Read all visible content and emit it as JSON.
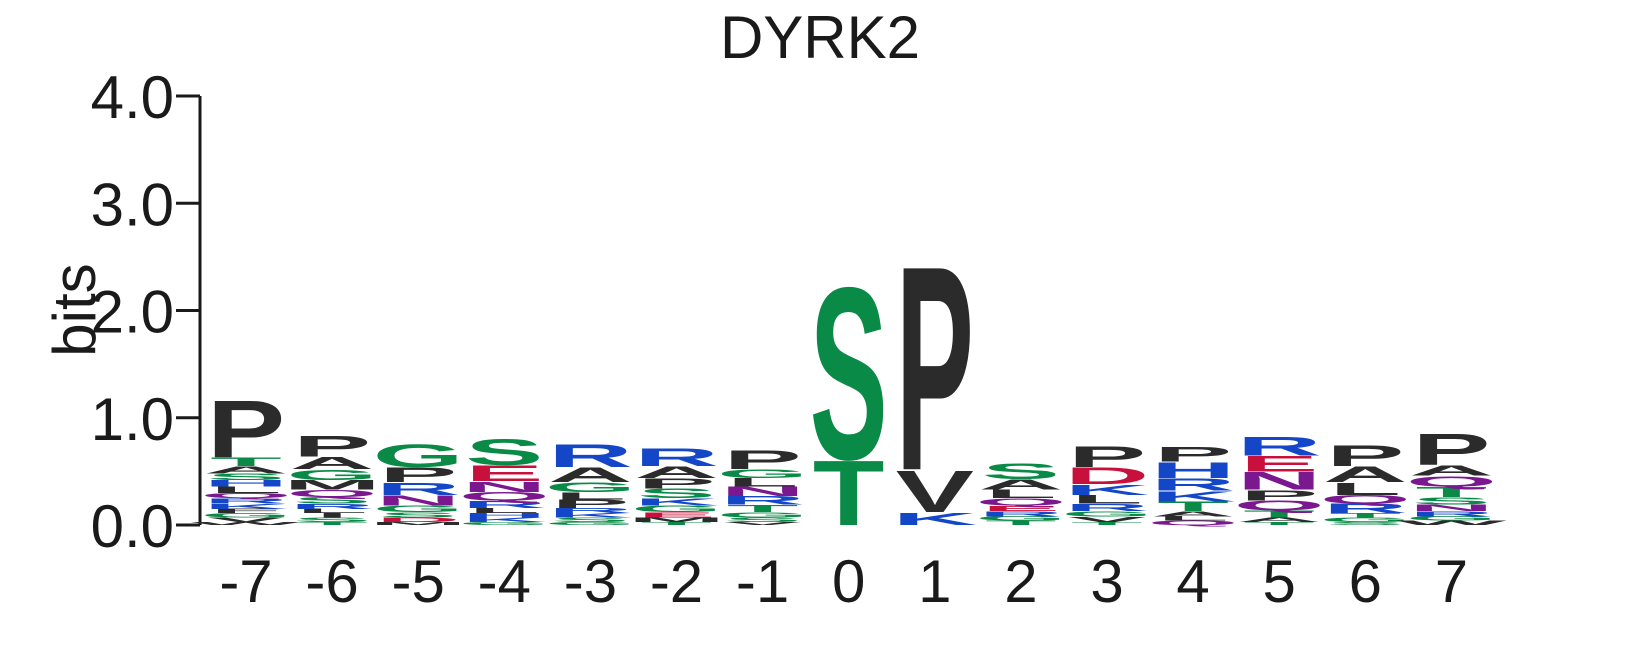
{
  "chart_data": {
    "type": "sequence-logo",
    "title": "DYRK2",
    "ylabel": "bits",
    "ylim": [
      0,
      4.0
    ],
    "yticks": [
      "0.0",
      "1.0",
      "2.0",
      "3.0",
      "4.0"
    ],
    "ytick_values": [
      0,
      1,
      2,
      3,
      4
    ],
    "positions": [
      "-7",
      "-6",
      "-5",
      "-4",
      "-3",
      "-2",
      "-1",
      "0",
      "1",
      "2",
      "3",
      "4",
      "5",
      "6",
      "7"
    ],
    "colors": {
      "hydrophobic": "#2b2b2b",
      "polar": "#0a8a47",
      "basic": "#1447c8",
      "acidic": "#c8103c",
      "amide": "#7b1890"
    },
    "residue_colors": {
      "A": "#2b2b2b",
      "V": "#2b2b2b",
      "L": "#2b2b2b",
      "I": "#2b2b2b",
      "P": "#2b2b2b",
      "F": "#2b2b2b",
      "W": "#2b2b2b",
      "M": "#2b2b2b",
      "G": "#0a8a47",
      "S": "#0a8a47",
      "T": "#0a8a47",
      "Y": "#0a8a47",
      "C": "#0a8a47",
      "K": "#1447c8",
      "R": "#1447c8",
      "H": "#1447c8",
      "D": "#c8103c",
      "E": "#c8103c",
      "N": "#7b1890",
      "Q": "#7b1890"
    },
    "stacks": [
      {
        "position": "-7",
        "letters": [
          [
            "W",
            0.03
          ],
          [
            "V",
            0.04
          ],
          [
            "G",
            0.04
          ],
          [
            "F",
            0.04
          ],
          [
            "K",
            0.05
          ],
          [
            "R",
            0.05
          ],
          [
            "Q",
            0.05
          ],
          [
            "L",
            0.06
          ],
          [
            "H",
            0.06
          ],
          [
            "S",
            0.06
          ],
          [
            "A",
            0.07
          ],
          [
            "T",
            0.08
          ],
          [
            "P",
            0.55
          ]
        ]
      },
      {
        "position": "-6",
        "letters": [
          [
            "T",
            0.03
          ],
          [
            "S",
            0.04
          ],
          [
            "I",
            0.04
          ],
          [
            "L",
            0.04
          ],
          [
            "R",
            0.05
          ],
          [
            "S",
            0.06
          ],
          [
            "Q",
            0.07
          ],
          [
            "M",
            0.09
          ],
          [
            "G",
            0.1
          ],
          [
            "A",
            0.12
          ],
          [
            "P",
            0.2
          ]
        ]
      },
      {
        "position": "-5",
        "letters": [
          [
            "M",
            0.03
          ],
          [
            "D",
            0.04
          ],
          [
            "S",
            0.05
          ],
          [
            "G",
            0.06
          ],
          [
            "N",
            0.1
          ],
          [
            "R",
            0.12
          ],
          [
            "P",
            0.14
          ],
          [
            "G",
            0.22
          ]
        ]
      },
      {
        "position": "-4",
        "letters": [
          [
            "G",
            0.03
          ],
          [
            "K",
            0.04
          ],
          [
            "H",
            0.04
          ],
          [
            "L",
            0.05
          ],
          [
            "R",
            0.07
          ],
          [
            "Q",
            0.08
          ],
          [
            "N",
            0.1
          ],
          [
            "E",
            0.15
          ],
          [
            "S",
            0.25
          ]
        ]
      },
      {
        "position": "-3",
        "letters": [
          [
            "G",
            0.03
          ],
          [
            "S",
            0.04
          ],
          [
            "K",
            0.04
          ],
          [
            "R",
            0.05
          ],
          [
            "P",
            0.08
          ],
          [
            "L",
            0.07
          ],
          [
            "G",
            0.09
          ],
          [
            "A",
            0.14
          ],
          [
            "R",
            0.22
          ]
        ]
      },
      {
        "position": "-2",
        "letters": [
          [
            "T",
            0.03
          ],
          [
            "M",
            0.04
          ],
          [
            "E",
            0.05
          ],
          [
            "G",
            0.06
          ],
          [
            "K",
            0.07
          ],
          [
            "S",
            0.09
          ],
          [
            "P",
            0.1
          ],
          [
            "A",
            0.11
          ],
          [
            "R",
            0.17
          ]
        ]
      },
      {
        "position": "-1",
        "letters": [
          [
            "V",
            0.03
          ],
          [
            "S",
            0.04
          ],
          [
            "G",
            0.05
          ],
          [
            "T",
            0.07
          ],
          [
            "R",
            0.08
          ],
          [
            "N",
            0.09
          ],
          [
            "L",
            0.08
          ],
          [
            "G",
            0.08
          ],
          [
            "P",
            0.18
          ]
        ]
      },
      {
        "position": "0",
        "letters": [
          [
            "T",
            0.62
          ],
          [
            "S",
            1.65
          ]
        ]
      },
      {
        "position": "1",
        "letters": [
          [
            "K",
            0.12
          ],
          [
            "V",
            0.4
          ],
          [
            "P",
            1.96
          ]
        ]
      },
      {
        "position": "2",
        "letters": [
          [
            "T",
            0.04
          ],
          [
            "G",
            0.04
          ],
          [
            "R",
            0.05
          ],
          [
            "E",
            0.05
          ],
          [
            "Q",
            0.07
          ],
          [
            "L",
            0.08
          ],
          [
            "A",
            0.1
          ],
          [
            "S",
            0.15
          ]
        ]
      },
      {
        "position": "3",
        "letters": [
          [
            "T",
            0.03
          ],
          [
            "V",
            0.05
          ],
          [
            "G",
            0.05
          ],
          [
            "R",
            0.07
          ],
          [
            "L",
            0.08
          ],
          [
            "K",
            0.1
          ],
          [
            "D",
            0.16
          ],
          [
            "P",
            0.2
          ]
        ]
      },
      {
        "position": "4",
        "letters": [
          [
            "Q",
            0.04
          ],
          [
            "L",
            0.04
          ],
          [
            "A",
            0.05
          ],
          [
            "T",
            0.09
          ],
          [
            "K",
            0.1
          ],
          [
            "R",
            0.12
          ],
          [
            "H",
            0.15
          ],
          [
            "P",
            0.14
          ]
        ]
      },
      {
        "position": "5",
        "letters": [
          [
            "T",
            0.03
          ],
          [
            "A",
            0.04
          ],
          [
            "T",
            0.07
          ],
          [
            "Q",
            0.09
          ],
          [
            "P",
            0.1
          ],
          [
            "N",
            0.17
          ],
          [
            "E",
            0.15
          ],
          [
            "R",
            0.18
          ]
        ]
      },
      {
        "position": "6",
        "letters": [
          [
            "S",
            0.03
          ],
          [
            "G",
            0.04
          ],
          [
            "T",
            0.04
          ],
          [
            "R",
            0.09
          ],
          [
            "Q",
            0.08
          ],
          [
            "L",
            0.12
          ],
          [
            "A",
            0.15
          ],
          [
            "P",
            0.2
          ]
        ]
      },
      {
        "position": "7",
        "letters": [
          [
            "W",
            0.04
          ],
          [
            "G",
            0.04
          ],
          [
            "R",
            0.05
          ],
          [
            "N",
            0.06
          ],
          [
            "S",
            0.07
          ],
          [
            "T",
            0.1
          ],
          [
            "Q",
            0.1
          ],
          [
            "A",
            0.1
          ],
          [
            "P",
            0.3
          ]
        ]
      }
    ]
  }
}
